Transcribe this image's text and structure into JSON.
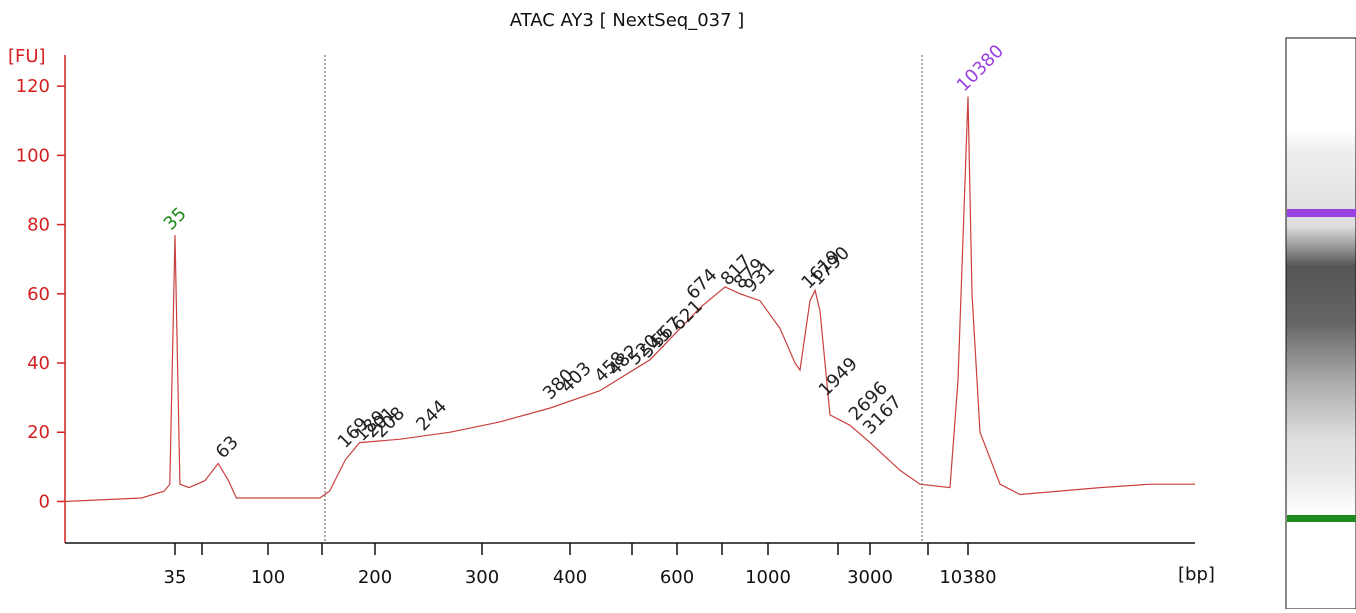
{
  "chart_data": {
    "type": "line",
    "title": "ATAC AY3  [ NextSeq_037 ]",
    "ylabel": "[FU]",
    "xlabel": "[bp]",
    "ylim": [
      -12,
      129
    ],
    "yticks": [
      0,
      20,
      40,
      60,
      80,
      100,
      120
    ],
    "xticks": [
      35,
      100,
      200,
      300,
      400,
      600,
      1000,
      3000,
      10380
    ],
    "series": [
      {
        "color": "#c9403f",
        "x": [
          10,
          24,
          31,
          33,
          35,
          37,
          41,
          49,
          57,
          64,
          70,
          82,
          140,
          149,
          165,
          181,
          220,
          266,
          318,
          375,
          448,
          542,
          683,
          786,
          855,
          956,
          1138,
          1338,
          1411,
          1572,
          1660,
          1751,
          1950,
          2419,
          3000,
          4387,
          5651,
          8267,
          9146,
          10380,
          10920,
          12086,
          15571,
          20060,
          55260,
          104060,
          184000
        ],
        "values": [
          0,
          1,
          3,
          5,
          77,
          5,
          4,
          6,
          11,
          6,
          1,
          1,
          1,
          3,
          12,
          17,
          18,
          20,
          23,
          27,
          32,
          41,
          56,
          62,
          60,
          58,
          50,
          40,
          38,
          58,
          61,
          55,
          25,
          22,
          17,
          9,
          5,
          4,
          35,
          117,
          60,
          20,
          5,
          2,
          4,
          5,
          5
        ]
      }
    ],
    "annotations": [
      {
        "x": 35,
        "y": 77,
        "color": "#1e8a1e"
      },
      {
        "x": 63,
        "y": 11,
        "color": "#222222"
      },
      {
        "x": 169,
        "y": 14,
        "color": "#222222"
      },
      {
        "x": 189,
        "y": 16,
        "color": "#222222"
      },
      {
        "x": 201,
        "y": 17,
        "color": "#222222"
      },
      {
        "x": 208,
        "y": 17,
        "color": "#222222"
      },
      {
        "x": 244,
        "y": 19,
        "color": "#222222"
      },
      {
        "x": 380,
        "y": 28,
        "color": "#222222"
      },
      {
        "x": 403,
        "y": 30,
        "color": "#222222"
      },
      {
        "x": 458,
        "y": 33,
        "color": "#222222"
      },
      {
        "x": 482,
        "y": 35,
        "color": "#222222"
      },
      {
        "x": 520,
        "y": 38,
        "color": "#222222"
      },
      {
        "x": 545,
        "y": 40,
        "color": "#222222"
      },
      {
        "x": 567,
        "y": 43,
        "color": "#222222"
      },
      {
        "x": 621,
        "y": 48,
        "color": "#222222"
      },
      {
        "x": 674,
        "y": 57,
        "color": "#222222"
      },
      {
        "x": 817,
        "y": 61,
        "color": "#222222"
      },
      {
        "x": 879,
        "y": 60,
        "color": "#222222"
      },
      {
        "x": 931,
        "y": 59,
        "color": "#222222"
      },
      {
        "x": 1619,
        "y": 60,
        "color": "#222222"
      },
      {
        "x": 1790,
        "y": 61,
        "color": "#222222"
      },
      {
        "x": 1949,
        "y": 29,
        "color": "#222222"
      },
      {
        "x": 2696,
        "y": 22,
        "color": "#222222"
      },
      {
        "x": 3167,
        "y": 18,
        "color": "#222222"
      },
      {
        "x": 10380,
        "y": 117,
        "color": "#9b40e0"
      }
    ]
  }
}
